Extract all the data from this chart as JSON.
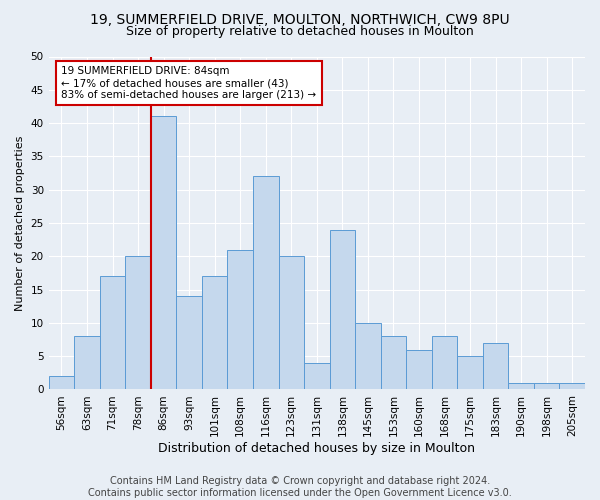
{
  "title1": "19, SUMMERFIELD DRIVE, MOULTON, NORTHWICH, CW9 8PU",
  "title2": "Size of property relative to detached houses in Moulton",
  "xlabel": "Distribution of detached houses by size in Moulton",
  "ylabel": "Number of detached properties",
  "footer1": "Contains HM Land Registry data © Crown copyright and database right 2024.",
  "footer2": "Contains public sector information licensed under the Open Government Licence v3.0.",
  "categories": [
    "56sqm",
    "63sqm",
    "71sqm",
    "78sqm",
    "86sqm",
    "93sqm",
    "101sqm",
    "108sqm",
    "116sqm",
    "123sqm",
    "131sqm",
    "138sqm",
    "145sqm",
    "153sqm",
    "160sqm",
    "168sqm",
    "175sqm",
    "183sqm",
    "190sqm",
    "198sqm",
    "205sqm"
  ],
  "values": [
    2,
    8,
    17,
    20,
    41,
    14,
    17,
    21,
    32,
    20,
    4,
    24,
    10,
    8,
    6,
    8,
    5,
    7,
    1,
    1,
    1
  ],
  "bar_color": "#c5d8ed",
  "bar_edge_color": "#5b9bd5",
  "highlight_index": 4,
  "highlight_line_color": "#cc0000",
  "annotation_line1": "19 SUMMERFIELD DRIVE: 84sqm",
  "annotation_line2": "← 17% of detached houses are smaller (43)",
  "annotation_line3": "83% of semi-detached houses are larger (213) →",
  "annotation_box_color": "#ffffff",
  "annotation_box_edge_color": "#cc0000",
  "ylim": [
    0,
    50
  ],
  "yticks": [
    0,
    5,
    10,
    15,
    20,
    25,
    30,
    35,
    40,
    45,
    50
  ],
  "bg_color": "#e8eef5",
  "plot_bg_color": "#e8eef5",
  "grid_color": "#ffffff",
  "title1_fontsize": 10,
  "title2_fontsize": 9,
  "xlabel_fontsize": 9,
  "ylabel_fontsize": 8,
  "tick_fontsize": 7.5,
  "footer_fontsize": 7
}
